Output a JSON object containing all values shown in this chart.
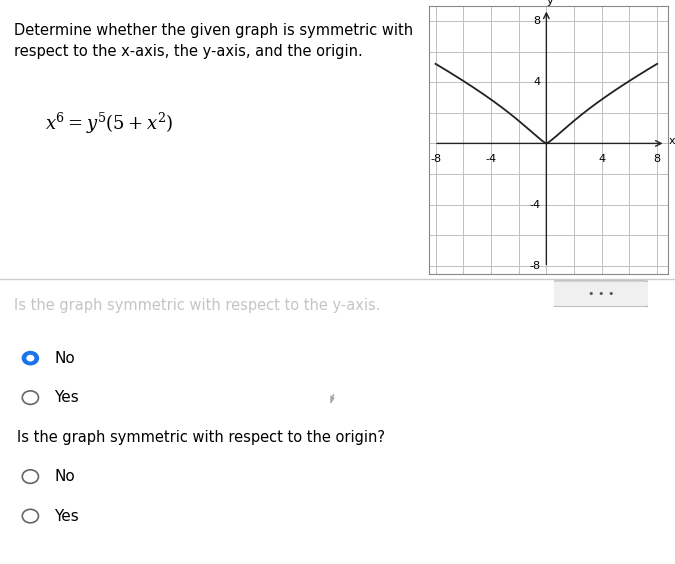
{
  "title_text": "Determine whether the given graph is symmetric with\nrespect to the x-axis, the y-axis, and the origin.",
  "graph_xlim": [
    -8,
    8
  ],
  "graph_ylim": [
    -8,
    8
  ],
  "curve_color": "#222222",
  "grid_color": "#c0c0c0",
  "axis_color": "#222222",
  "background_color": "#f5f5f5",
  "panel_color": "#ffffff",
  "separator_color": "#cccccc",
  "radio_color_selected": "#1a73e8",
  "radio_color_unselected": "#666666",
  "font_size_title": 10.5,
  "font_size_equation": 13,
  "font_size_labels": 10.5,
  "font_size_radio": 11,
  "font_size_graph_tick": 8,
  "blurred_text": "Is the graph symmetric with respect to the y-axis.",
  "q2_label": "Is the graph symmetric with respect to the origin?",
  "fig_width": 6.75,
  "fig_height": 5.64
}
